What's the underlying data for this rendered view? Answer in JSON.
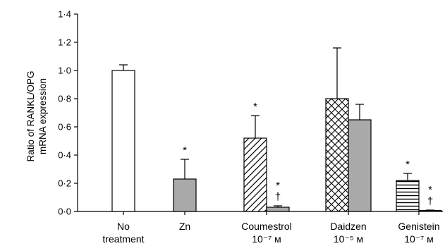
{
  "chart_data": {
    "type": "bar",
    "ylabel_lines": [
      "Ratio of RANKL/OPG",
      "mRNA expression"
    ],
    "ylim": [
      0,
      1.4
    ],
    "yticks": [
      "0·0",
      "0·2",
      "0·4",
      "0·6",
      "0·8",
      "1·0",
      "1·2",
      "1·4"
    ],
    "groups": [
      {
        "label": [
          "No",
          "treatment"
        ]
      },
      {
        "label": [
          "Zn"
        ]
      },
      {
        "label": [
          "Coumestrol",
          "10⁻⁷ м"
        ]
      },
      {
        "label": [
          "Daidzen",
          "10⁻⁵ м"
        ]
      },
      {
        "label": [
          "Genistein",
          "10⁻⁷ м"
        ]
      }
    ],
    "bars": [
      {
        "group": 0,
        "slot": "center",
        "fill": "white",
        "value": 1.0,
        "error": 0.04,
        "markers": []
      },
      {
        "group": 1,
        "slot": "center",
        "fill": "gray",
        "value": 0.23,
        "error": 0.14,
        "markers": [
          "*"
        ]
      },
      {
        "group": 2,
        "slot": "left",
        "fill": "diagonal",
        "value": 0.52,
        "error": 0.16,
        "markers": [
          "*"
        ]
      },
      {
        "group": 2,
        "slot": "right",
        "fill": "gray",
        "value": 0.03,
        "error": 0.01,
        "markers": [
          "*",
          "†"
        ]
      },
      {
        "group": 3,
        "slot": "left",
        "fill": "crosshatch",
        "value": 0.8,
        "error": 0.36,
        "markers": []
      },
      {
        "group": 3,
        "slot": "right",
        "fill": "gray",
        "value": 0.65,
        "error": 0.11,
        "markers": []
      },
      {
        "group": 4,
        "slot": "left",
        "fill": "horizontal",
        "value": 0.22,
        "error": 0.05,
        "markers": [
          "*"
        ]
      },
      {
        "group": 4,
        "slot": "right",
        "fill": "gray",
        "value": 0.005,
        "error": 0.005,
        "markers": [
          "*",
          "†"
        ]
      }
    ],
    "colors": {
      "gray": "#a9a9a9",
      "line": "#000000"
    },
    "grid": false,
    "legend": "none"
  }
}
